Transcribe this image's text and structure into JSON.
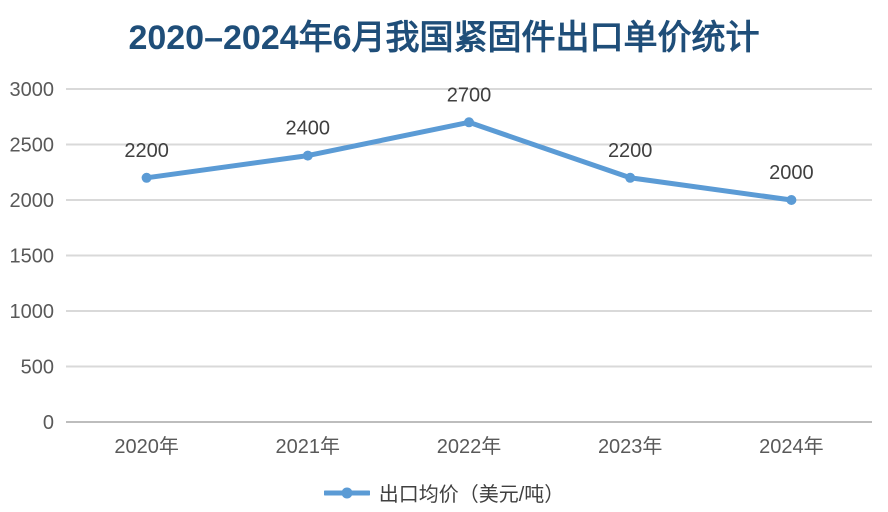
{
  "title": {
    "text": "2020–2024年6月我国紧固件出口单价统计",
    "color": "#1F4E79"
  },
  "legend": {
    "label": "出口均价（美元/吨）",
    "marker": "line-with-dot"
  },
  "colors": {
    "line": "#5B9BD5",
    "marker": "#5B9BD5",
    "grid": "#D9D9D9",
    "axis_line": "#BDBDBD",
    "tick_label": "#595959",
    "category_label": "#595959",
    "data_label": "#404040",
    "title": "#1F4E79",
    "background": "#FFFFFF"
  },
  "chart_data": {
    "type": "line",
    "title": "2020–2024年6月我国紧固件出口单价统计",
    "categories": [
      "2020年",
      "2021年",
      "2022年",
      "2023年",
      "2024年"
    ],
    "series": [
      {
        "name": "出口均价（美元/吨）",
        "values": [
          2200,
          2400,
          2700,
          2200,
          2000
        ]
      }
    ],
    "data_labels": [
      "2200",
      "2400",
      "2700",
      "2200",
      "2000"
    ],
    "xlabel": "",
    "ylabel": "",
    "ylim": [
      0,
      3000
    ],
    "yticks": [
      0,
      500,
      1000,
      1500,
      2000,
      2500,
      3000
    ],
    "ytick_labels": [
      "0",
      "500",
      "1000",
      "1500",
      "2000",
      "2500",
      "3000"
    ],
    "grid": true,
    "legend_position": "bottom",
    "marker": "circle",
    "show_data_labels": true
  }
}
